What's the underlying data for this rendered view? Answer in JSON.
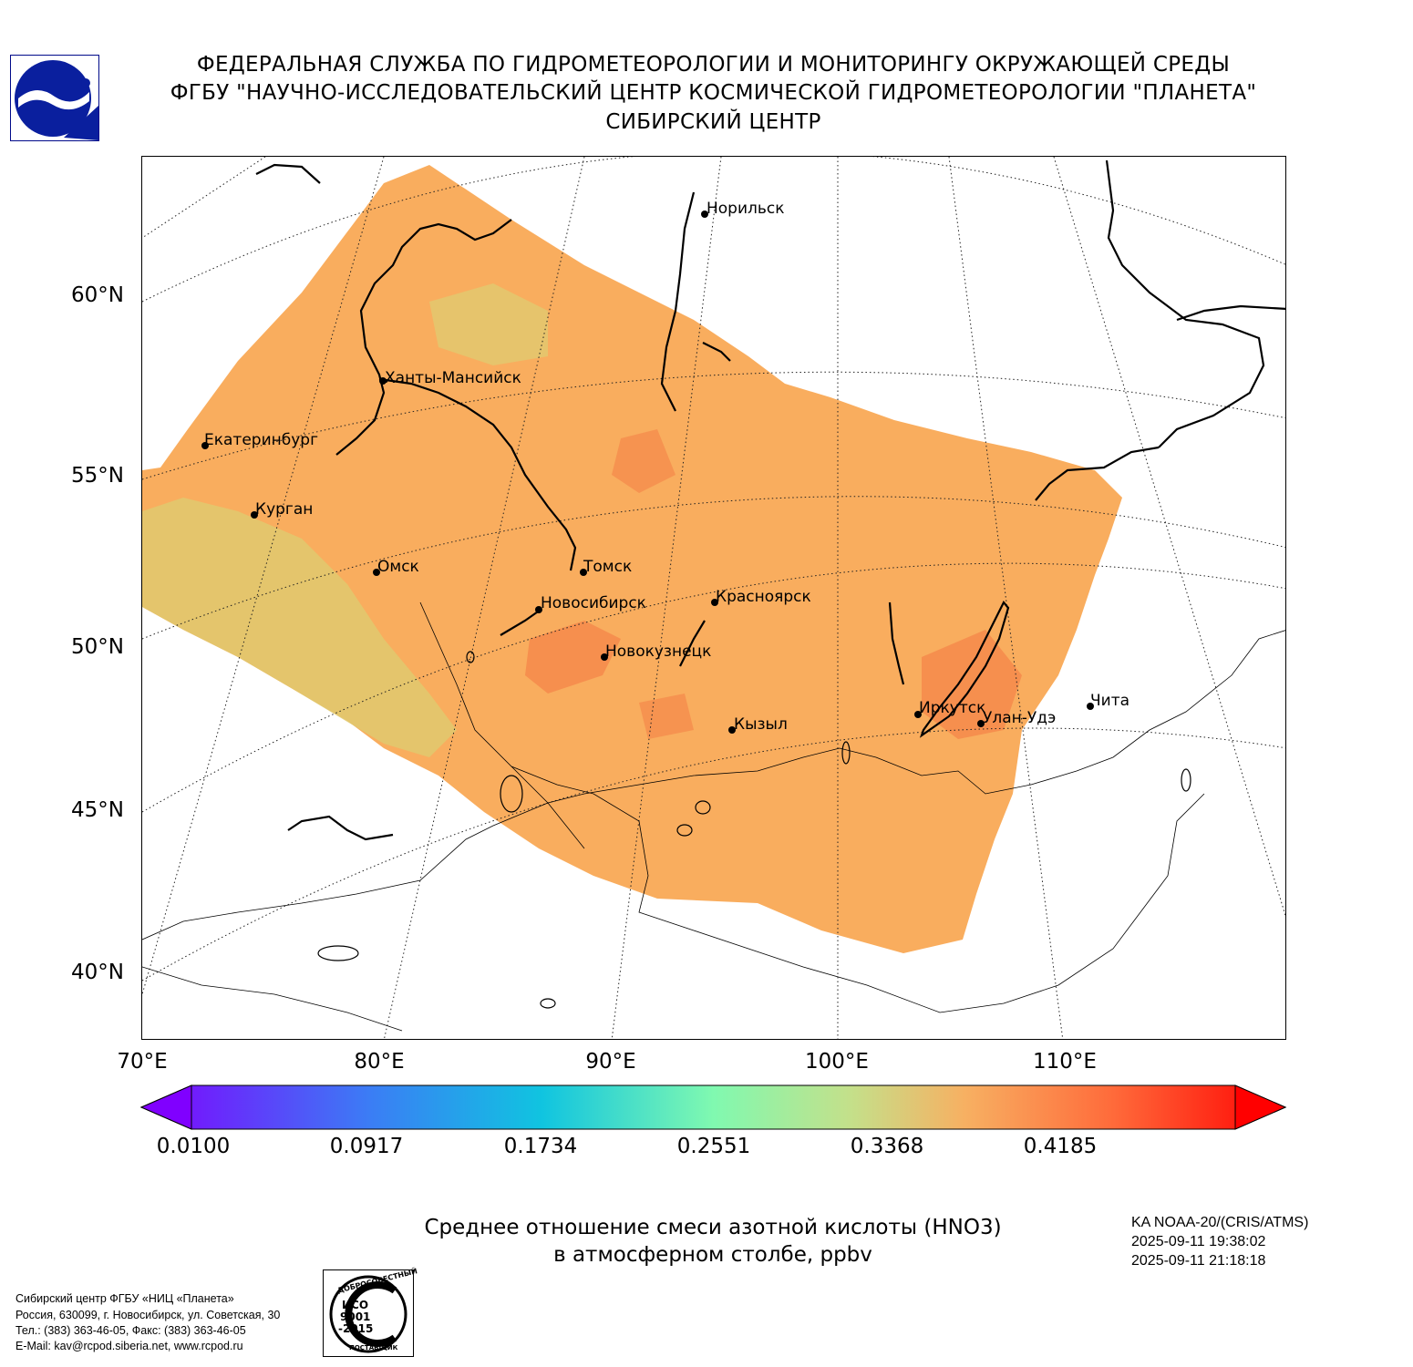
{
  "header": {
    "line1": "ФЕДЕРАЛЬНАЯ СЛУЖБА ПО ГИДРОМЕТЕОРОЛОГИИ И МОНИТОРИНГУ ОКРУЖАЮЩЕЙ СРЕДЫ",
    "line2": "ФГБУ \"НАУЧНО-ИССЛЕДОВАТЕЛЬСКИЙ ЦЕНТР КОСМИЧЕСКОЙ ГИДРОМЕТЕОРОЛОГИИ \"ПЛАНЕТА\"",
    "line3": "СИБИРСКИЙ ЦЕНТР"
  },
  "map": {
    "lat_labels": [
      "60°N",
      "55°N",
      "50°N",
      "45°N",
      "40°N"
    ],
    "lon_labels": [
      "70°E",
      "80°E",
      "90°E",
      "100°E",
      "110°E"
    ],
    "cities": [
      {
        "name": "Норильск"
      },
      {
        "name": "Ханты-Мансийск"
      },
      {
        "name": "Екатеринбург"
      },
      {
        "name": "Курган"
      },
      {
        "name": "Омск"
      },
      {
        "name": "Томск"
      },
      {
        "name": "Новосибирск"
      },
      {
        "name": "Красноярск"
      },
      {
        "name": "Новокузнецк"
      },
      {
        "name": "Кызыл"
      },
      {
        "name": "Иркутск"
      },
      {
        "name": "Улан-Удэ"
      },
      {
        "name": "Чита"
      }
    ],
    "field_colors": {
      "low": "#d9d27a",
      "mid": "#f9ad5e",
      "high": "#f5874a"
    }
  },
  "colorbar": {
    "ticks": [
      "0.0100",
      "0.0917",
      "0.1734",
      "0.2551",
      "0.3368",
      "0.4185"
    ],
    "min": 0.01,
    "max": 0.5002,
    "extend": "both",
    "colormap": "rainbow"
  },
  "caption": {
    "line1": "Среднее отношение смеси азотной кислоты (HNO3)",
    "line2": "в атмосферном столбе, ppbv"
  },
  "satellite": {
    "name": "KA NOAA-20/(CRIS/ATMS)",
    "time_start": "2025-09-11 19:38:02",
    "time_end": "2025-09-11 21:18:18"
  },
  "footer": {
    "line1": "Сибирский центр ФГБУ «НИЦ «Планета»",
    "line2": "Россия, 630099, г. Новосибирск, ул. Советская, 30",
    "line3": "Тел.: (383) 363-46-05, Факс: (383) 363-46-05",
    "line4": "E-Mail: kav@rcpod.siberia.net, www.rcpod.ru"
  },
  "iso_stamp": {
    "top": "ДОБРОСОВЕСТНЫЙ",
    "iso": "ИСО",
    "num": "9001",
    "year": "-2015",
    "bottom": "ПОСТАВЩИК"
  }
}
